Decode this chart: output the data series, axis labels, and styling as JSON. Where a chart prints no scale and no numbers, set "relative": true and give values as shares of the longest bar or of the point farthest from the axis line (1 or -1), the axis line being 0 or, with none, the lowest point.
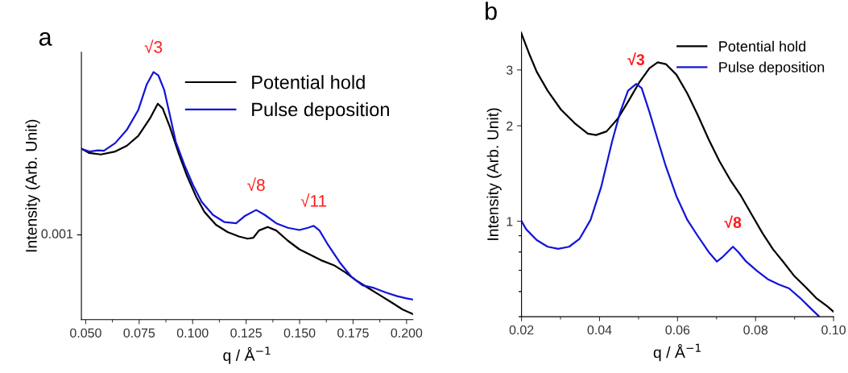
{
  "chart_data": [
    {
      "type": "line",
      "title": "a",
      "xlabel": "q / Å$^{−1}$",
      "ylabel": "Intensity (Arb. Unit)",
      "relative": true,
      "legend": "top right",
      "xlim": [
        0.048,
        0.203
      ],
      "xticks": [
        {
          "value": 0.05,
          "label": "0.050"
        },
        {
          "value": 0.075,
          "label": "0.075"
        },
        {
          "value": 0.1,
          "label": "0.100"
        },
        {
          "value": 0.125,
          "label": "0.125"
        },
        {
          "value": 0.15,
          "label": "0.150"
        },
        {
          "value": 0.175,
          "label": "0.175"
        },
        {
          "value": 0.2,
          "label": "0.200"
        }
      ],
      "annotations": [
        "0.001",
        {
          "text": "√3",
          "x": 0.0817,
          "y": 1.0
        },
        {
          "text": "√8",
          "x": 0.1297,
          "y": 0.443
        },
        {
          "text": "√11",
          "x": 0.1566,
          "y": 0.379
        }
      ],
      "series": [
        {
          "name": "Potential hold",
          "color": "#000000",
          "x": [
            0.0481,
            0.0517,
            0.0571,
            0.0638,
            0.0692,
            0.0746,
            0.08,
            0.0837,
            0.086,
            0.0894,
            0.0934,
            0.0974,
            0.1015,
            0.1055,
            0.1109,
            0.1163,
            0.1216,
            0.1257,
            0.1284,
            0.131,
            0.1351,
            0.1391,
            0.1445,
            0.1499,
            0.1552,
            0.1606,
            0.166,
            0.1714,
            0.1767,
            0.1821,
            0.1875,
            0.1929,
            0.1982,
            0.2029
          ],
          "values": [
            0.69,
            0.673,
            0.667,
            0.679,
            0.702,
            0.742,
            0.812,
            0.872,
            0.853,
            0.777,
            0.673,
            0.58,
            0.499,
            0.435,
            0.383,
            0.354,
            0.336,
            0.327,
            0.331,
            0.36,
            0.374,
            0.36,
            0.319,
            0.284,
            0.261,
            0.238,
            0.22,
            0.191,
            0.157,
            0.128,
            0.099,
            0.07,
            0.041,
            0.023
          ]
        },
        {
          "name": "Pulse deposition",
          "color": "#1414d8",
          "x": [
            0.0481,
            0.0517,
            0.0558,
            0.0585,
            0.0638,
            0.0692,
            0.0746,
            0.0786,
            0.0817,
            0.084,
            0.0867,
            0.0894,
            0.0921,
            0.0961,
            0.1001,
            0.1042,
            0.1095,
            0.1149,
            0.1203,
            0.1243,
            0.1297,
            0.1337,
            0.1391,
            0.1445,
            0.1499,
            0.1539,
            0.1566,
            0.1593,
            0.1633,
            0.1687,
            0.1741,
            0.1794,
            0.1848,
            0.1902,
            0.1956,
            0.1996,
            0.203
          ],
          "values": [
            0.69,
            0.679,
            0.684,
            0.682,
            0.713,
            0.766,
            0.847,
            0.951,
            1.0,
            0.986,
            0.928,
            0.824,
            0.719,
            0.626,
            0.545,
            0.476,
            0.423,
            0.394,
            0.389,
            0.418,
            0.443,
            0.423,
            0.389,
            0.371,
            0.362,
            0.371,
            0.379,
            0.36,
            0.302,
            0.232,
            0.174,
            0.139,
            0.128,
            0.11,
            0.095,
            0.087,
            0.081
          ]
        }
      ]
    },
    {
      "type": "line",
      "title": "b",
      "xlabel": "q / Å$^{−1}$",
      "ylabel": "Intensity (Arb. Unit)",
      "log": "y",
      "legend": "top right",
      "xlim": [
        0.02,
        0.1
      ],
      "xticks": [
        0.02,
        0.04,
        0.06,
        0.08,
        {
          "value": 0.1,
          "label": "0.10"
        }
      ],
      "ylim": [
        0.5,
        3.95
      ],
      "yticks": [
        1,
        2,
        3
      ],
      "annotations": [
        {
          "text": "√3",
          "x": 0.0494,
          "y": 2.71
        },
        {
          "text": "√8",
          "x": 0.0742,
          "y": 0.831
        }
      ],
      "series": [
        {
          "name": "Potential hold",
          "color": "#000000",
          "x": [
            0.02,
            0.0219,
            0.0239,
            0.0267,
            0.0301,
            0.0336,
            0.037,
            0.0391,
            0.0418,
            0.0446,
            0.0473,
            0.0501,
            0.0528,
            0.0549,
            0.057,
            0.0597,
            0.0625,
            0.0652,
            0.068,
            0.0707,
            0.0735,
            0.0763,
            0.079,
            0.0818,
            0.0845,
            0.0873,
            0.09,
            0.0928,
            0.0955,
            0.0983,
            0.1
          ],
          "values": [
            3.9,
            3.39,
            2.96,
            2.58,
            2.25,
            2.04,
            1.89,
            1.87,
            1.92,
            2.1,
            2.38,
            2.73,
            3.04,
            3.17,
            3.13,
            2.9,
            2.53,
            2.16,
            1.81,
            1.55,
            1.35,
            1.2,
            1.05,
            0.916,
            0.815,
            0.739,
            0.67,
            0.62,
            0.573,
            0.54,
            0.518
          ]
        },
        {
          "name": "Pulse deposition",
          "color": "#1414d8",
          "x": [
            0.02,
            0.0212,
            0.0239,
            0.0267,
            0.0294,
            0.0322,
            0.0349,
            0.0377,
            0.0404,
            0.0432,
            0.0453,
            0.0473,
            0.0494,
            0.0508,
            0.0528,
            0.0549,
            0.057,
            0.0597,
            0.0625,
            0.0652,
            0.068,
            0.0701,
            0.0714,
            0.0742,
            0.0756,
            0.0776,
            0.0804,
            0.0831,
            0.0859,
            0.0886,
            0.0914,
            0.0942,
            0.0962
          ],
          "values": [
            1.0,
            0.943,
            0.872,
            0.831,
            0.818,
            0.831,
            0.881,
            1.01,
            1.28,
            1.78,
            2.21,
            2.58,
            2.71,
            2.63,
            2.21,
            1.81,
            1.49,
            1.2,
            1.01,
            0.898,
            0.799,
            0.746,
            0.768,
            0.831,
            0.799,
            0.746,
            0.697,
            0.657,
            0.632,
            0.614,
            0.573,
            0.53,
            0.502
          ]
        }
      ]
    }
  ]
}
